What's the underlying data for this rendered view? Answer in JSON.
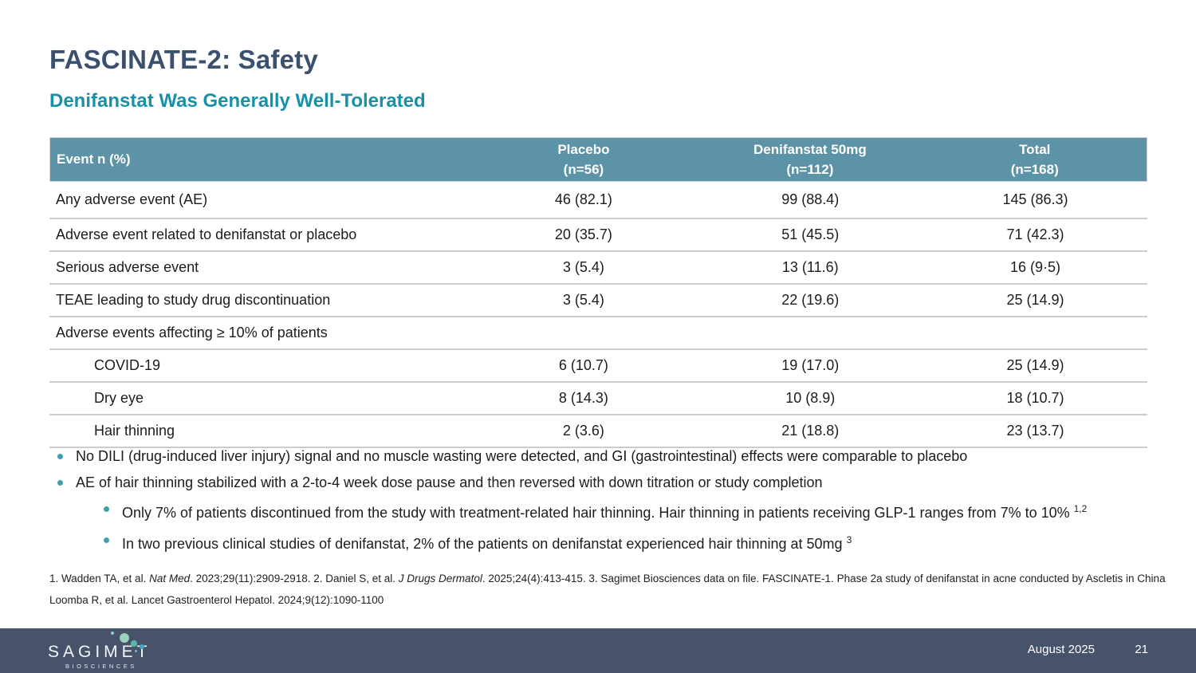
{
  "slide": {
    "title": "FASCINATE-2: Safety",
    "subtitle": "Denifanstat Was Generally Well-Tolerated"
  },
  "colors": {
    "title": "#3A506C",
    "accent_teal": "#1791A8",
    "table_header_bg": "#5C93A6",
    "footer_bg": "#47536B",
    "bullet_dot": "#3E9FAD"
  },
  "table": {
    "header": {
      "col1": "Event n (%)",
      "col2_label": "Placebo",
      "col2_sub": "(n=56)",
      "col3_label": "Denifanstat 50mg",
      "col3_sub": "(n=112)",
      "col4_label": "Total",
      "col4_sub": "(n=168)"
    },
    "rows": [
      {
        "label": "Any adverse event (AE)",
        "placebo": "46 (82.1)",
        "denifanstat": "99 (88.4)",
        "total": "145 (86.3)"
      },
      {
        "label": "Adverse event related to denifanstat or placebo",
        "placebo": "20 (35.7)",
        "denifanstat": "51 (45.5)",
        "total": "71 (42.3)"
      },
      {
        "label": "Serious adverse event",
        "placebo": "3 (5.4)",
        "denifanstat": "13 (11.6)",
        "total": "16 (9·5)"
      },
      {
        "label": "TEAE leading to study drug discontinuation",
        "placebo": "3 (5.4)",
        "denifanstat": "22 (19.6)",
        "total": "25 (14.9)"
      },
      {
        "label": "Adverse events affecting ≥ 10% of patients",
        "placebo": "",
        "denifanstat": "",
        "total": ""
      },
      {
        "label": "COVID-19",
        "placebo": "6 (10.7)",
        "denifanstat": "19 (17.0)",
        "total": "25 (14.9)"
      },
      {
        "label": "Dry eye",
        "placebo": "8 (14.3)",
        "denifanstat": "10 (8.9)",
        "total": "18 (10.7)"
      },
      {
        "label": "Hair thinning",
        "placebo": "2 (3.6)",
        "denifanstat": "21 (18.8)",
        "total": "23 (13.7)"
      }
    ]
  },
  "bullets": {
    "b1": "No DILI (drug-induced liver injury) signal and no muscle wasting were detected, and GI (gastrointestinal) effects were comparable to placebo",
    "b2": "AE of hair thinning stabilized with a 2-to-4 week dose pause and then reversed with down titration or study completion",
    "sub1_text": "Only 7% of patients discontinued from the study with treatment-related hair thinning. Hair thinning in patients receiving GLP-1 ranges from 7% to 10% ",
    "sub1_sup": "1,2",
    "sub2_text": "In two previous clinical studies of denifanstat, 2% of the patients on denifanstat experienced hair thinning at 50mg ",
    "sub2_sup": "3"
  },
  "footnotes": {
    "line1_parts": {
      "p1": "1. Wadden TA, et al. ",
      "p2": "Nat Med",
      "p3": ". 2023;29(11):2909-2918. 2. Daniel S, et al. ",
      "p4": "J Drugs Dermatol",
      "p5": ". 2025;24(4):413-415. 3. Sagimet Biosciences data on file. FASCINATE-1. Phase 2a study of denifanstat in acne conducted by Ascletis in China"
    },
    "line2": "Loomba R, et al. Lancet Gastroenterol Hepatol. 2024;9(12):1090-1100"
  },
  "footer": {
    "brand": "SAGIMET",
    "brand_sub": "BIOSCIENCES",
    "date": "August 2025",
    "page": "21"
  }
}
